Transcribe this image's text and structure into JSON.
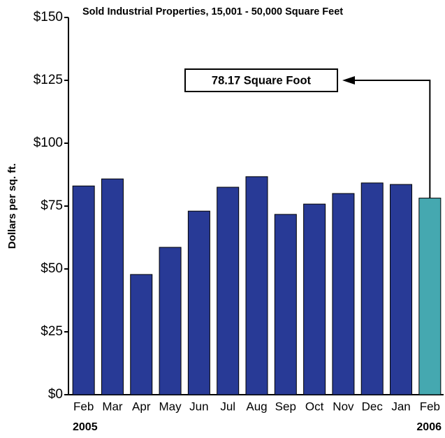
{
  "chart_data": {
    "type": "bar",
    "title": "Sold Industrial Properties, 15,001 - 50,000 Square Feet",
    "y_label": "Dollars per sq. ft.",
    "categories": [
      "Feb",
      "Mar",
      "Apr",
      "May",
      "Jun",
      "Jul",
      "Aug",
      "Sep",
      "Oct",
      "Nov",
      "Dec",
      "Jan",
      "Feb"
    ],
    "year_start": "2005",
    "year_end": "2006",
    "values": [
      83,
      85.8,
      47.8,
      58.6,
      73,
      82.5,
      86.7,
      71.7,
      75.8,
      80,
      84.2,
      83.6,
      78.17
    ],
    "colors": [
      "#283a96",
      "#283a96",
      "#283a96",
      "#283a96",
      "#283a96",
      "#283a96",
      "#283a96",
      "#283a96",
      "#283a96",
      "#283a96",
      "#283a96",
      "#283a96",
      "#45a8b0"
    ],
    "annotation": "78.17 Square Foot",
    "ylim": [
      0,
      150
    ],
    "yticks": [
      {
        "value": 0,
        "label": "$0"
      },
      {
        "value": 25,
        "label": "$25"
      },
      {
        "value": 50,
        "label": "$50"
      },
      {
        "value": 75,
        "label": "$75"
      },
      {
        "value": 100,
        "label": "$100"
      },
      {
        "value": 125,
        "label": "$125"
      },
      {
        "value": 150,
        "label": "$150"
      }
    ]
  }
}
